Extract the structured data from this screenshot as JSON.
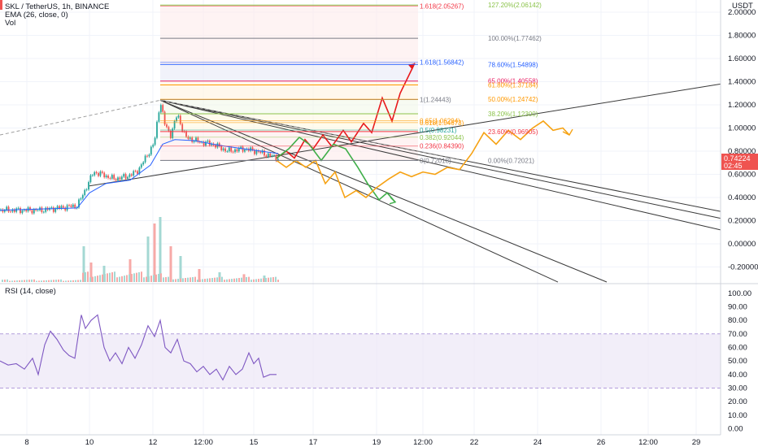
{
  "legend": {
    "symbol": "SKL / TetherUS, 1h, BINANCE",
    "ema": "EMA (26, close, 0)",
    "vol": "Vol",
    "rsi": "RSI (14, close)"
  },
  "price_tag": {
    "value": "0.74224",
    "countdown": "02:45",
    "currency": "USDT"
  },
  "colors": {
    "up": "#26a69a",
    "down": "#ef5350",
    "ema": "#2962ff",
    "rsi": "#7e57c2",
    "rsi_band": "#ede7f6",
    "path_red": "#e8191c",
    "path_green": "#3fae49",
    "path_orange": "#f6a213",
    "trendline": "#3a3a3a"
  },
  "chart_data": [
    {
      "type": "candlestick",
      "title": "SKL / TetherUS, 1h, BINANCE",
      "ylim": [
        -0.28,
        2.08
      ],
      "y_ticks": [
        -0.2,
        0.0,
        0.2,
        0.4,
        0.6,
        0.8,
        1.0,
        1.2,
        1.4,
        1.6,
        1.8,
        2.0
      ],
      "y_tick_labels": [
        "-0.20000",
        "0.00000",
        "0.20000",
        "0.40000",
        "0.60000",
        "0.80000",
        "1.00000",
        "1.20000",
        "1.40000",
        "1.60000",
        "1.80000",
        "2.00000"
      ],
      "x_tick_labels": [
        "8",
        "10",
        "12",
        "12:00",
        "15",
        "17",
        "19",
        "12:00",
        "22",
        "24",
        "26",
        "12:00",
        "29"
      ],
      "last_price": 0.74224,
      "price_anchors": [
        {
          "x": 0,
          "y": 0.29
        },
        {
          "x": 50,
          "y": 0.29
        },
        {
          "x": 95,
          "y": 0.33
        },
        {
          "x": 103,
          "y": 0.44
        },
        {
          "x": 115,
          "y": 0.62
        },
        {
          "x": 125,
          "y": 0.6
        },
        {
          "x": 140,
          "y": 0.56
        },
        {
          "x": 155,
          "y": 0.58
        },
        {
          "x": 168,
          "y": 0.62
        },
        {
          "x": 180,
          "y": 0.75
        },
        {
          "x": 190,
          "y": 0.88
        },
        {
          "x": 197,
          "y": 1.24
        },
        {
          "x": 203,
          "y": 1.02
        },
        {
          "x": 210,
          "y": 0.94
        },
        {
          "x": 218,
          "y": 1.12
        },
        {
          "x": 228,
          "y": 0.92
        },
        {
          "x": 245,
          "y": 0.88
        },
        {
          "x": 262,
          "y": 0.86
        },
        {
          "x": 280,
          "y": 0.8
        },
        {
          "x": 300,
          "y": 0.82
        },
        {
          "x": 315,
          "y": 0.8
        },
        {
          "x": 332,
          "y": 0.76
        },
        {
          "x": 342,
          "y": 0.74
        }
      ],
      "ema": [
        {
          "x": 0,
          "y": 0.29
        },
        {
          "x": 95,
          "y": 0.31
        },
        {
          "x": 110,
          "y": 0.44
        },
        {
          "x": 130,
          "y": 0.52
        },
        {
          "x": 160,
          "y": 0.55
        },
        {
          "x": 185,
          "y": 0.68
        },
        {
          "x": 200,
          "y": 0.86
        },
        {
          "x": 215,
          "y": 0.9
        },
        {
          "x": 240,
          "y": 0.89
        },
        {
          "x": 270,
          "y": 0.85
        },
        {
          "x": 300,
          "y": 0.82
        },
        {
          "x": 342,
          "y": 0.78
        }
      ],
      "fibonacci": [
        {
          "label": "127.20%(2.06142)",
          "value": 2.06142,
          "color": "#8bc34a"
        },
        {
          "label": "100.00%(1.77462)",
          "value": 1.77462,
          "color": "#787b86"
        },
        {
          "label": "78.60%(1.54898)",
          "value": 1.54898,
          "color": "#2962ff"
        },
        {
          "label": "65.00%(1.40558)",
          "value": 1.40558,
          "color": "#e91e63"
        },
        {
          "label": "61.80%(1.37184)",
          "value": 1.37184,
          "color": "#ff9800"
        },
        {
          "label": "50.00%(1.24742)",
          "value": 1.24742,
          "color": "#ff9800"
        },
        {
          "label": "38.20%(1.12300)",
          "value": 1.123,
          "color": "#8bc34a"
        },
        {
          "label": "23.60%(0.96905)",
          "value": 0.96905,
          "color": "#f23645"
        },
        {
          "label": "0.00%(0.72021)",
          "value": 0.72021,
          "color": "#787b86"
        }
      ],
      "fib_retracement": [
        {
          "label": "1.618(2.05267)",
          "value": 2.05267,
          "color": "#f23645"
        },
        {
          "label": "1.618(1.56842)",
          "value": 1.56842,
          "color": "#2962ff"
        },
        {
          "label": "1(1.24443)",
          "value": 1.24443,
          "color": "#787b86"
        },
        {
          "label": "0.65(1.06294)",
          "value": 1.06294,
          "color": "#ff9800"
        },
        {
          "label": "0.618(1.04673)",
          "value": 1.04673,
          "color": "#ff9800"
        },
        {
          "label": "0.5(0.98231)",
          "value": 0.98231,
          "color": "#26a69a"
        },
        {
          "label": "0.382(0.92044)",
          "value": 0.92044,
          "color": "#8bc34a"
        },
        {
          "label": "0.236(0.84390)",
          "value": 0.8439,
          "color": "#f23645"
        },
        {
          "label": "0(0.72018)",
          "value": 0.72018,
          "color": "#787b86"
        }
      ],
      "projection_paths": [
        {
          "color": "#e8191c",
          "points": [
            {
              "x": 340,
              "y": 0.74
            },
            {
              "x": 352,
              "y": 0.8
            },
            {
              "x": 362,
              "y": 0.74
            },
            {
              "x": 375,
              "y": 0.9
            },
            {
              "x": 385,
              "y": 0.82
            },
            {
              "x": 397,
              "y": 0.94
            },
            {
              "x": 408,
              "y": 0.84
            },
            {
              "x": 422,
              "y": 0.98
            },
            {
              "x": 432,
              "y": 0.88
            },
            {
              "x": 447,
              "y": 1.04
            },
            {
              "x": 457,
              "y": 0.96
            },
            {
              "x": 470,
              "y": 1.26
            },
            {
              "x": 482,
              "y": 1.06
            },
            {
              "x": 492,
              "y": 1.3
            },
            {
              "x": 510,
              "y": 1.56
            }
          ]
        },
        {
          "color": "#3fae49",
          "points": [
            {
              "x": 340,
              "y": 0.74
            },
            {
              "x": 355,
              "y": 0.82
            },
            {
              "x": 368,
              "y": 0.92
            },
            {
              "x": 380,
              "y": 0.86
            },
            {
              "x": 395,
              "y": 0.72
            },
            {
              "x": 410,
              "y": 0.86
            },
            {
              "x": 425,
              "y": 0.82
            },
            {
              "x": 440,
              "y": 0.66
            },
            {
              "x": 452,
              "y": 0.52
            },
            {
              "x": 466,
              "y": 0.38
            },
            {
              "x": 476,
              "y": 0.44
            },
            {
              "x": 486,
              "y": 0.36
            }
          ]
        },
        {
          "color": "#f6a213",
          "points": [
            {
              "x": 340,
              "y": 0.72
            },
            {
              "x": 352,
              "y": 0.66
            },
            {
              "x": 364,
              "y": 0.72
            },
            {
              "x": 376,
              "y": 0.66
            },
            {
              "x": 388,
              "y": 0.72
            },
            {
              "x": 400,
              "y": 0.52
            },
            {
              "x": 412,
              "y": 0.62
            },
            {
              "x": 424,
              "y": 0.4
            },
            {
              "x": 438,
              "y": 0.46
            },
            {
              "x": 450,
              "y": 0.4
            },
            {
              "x": 462,
              "y": 0.48
            },
            {
              "x": 478,
              "y": 0.56
            },
            {
              "x": 492,
              "y": 0.62
            },
            {
              "x": 506,
              "y": 0.58
            },
            {
              "x": 520,
              "y": 0.62
            },
            {
              "x": 535,
              "y": 0.6
            },
            {
              "x": 550,
              "y": 0.66
            },
            {
              "x": 565,
              "y": 0.64
            },
            {
              "x": 580,
              "y": 0.78
            },
            {
              "x": 595,
              "y": 0.96
            },
            {
              "x": 610,
              "y": 0.86
            },
            {
              "x": 625,
              "y": 0.98
            },
            {
              "x": 640,
              "y": 0.9
            },
            {
              "x": 655,
              "y": 1.0
            },
            {
              "x": 668,
              "y": 1.06
            },
            {
              "x": 680,
              "y": 0.98
            },
            {
              "x": 692,
              "y": 1.0
            },
            {
              "x": 700,
              "y": 0.94
            }
          ]
        }
      ],
      "trendlines": [
        {
          "style": "solid",
          "from": {
            "x": 110,
            "y": 0.5
          },
          "to": {
            "x": 886,
            "y": 1.38
          }
        },
        {
          "style": "solid",
          "from": {
            "x": 197,
            "y": 1.24
          },
          "to": {
            "x": 886,
            "y": 0.28
          }
        },
        {
          "style": "solid",
          "from": {
            "x": 197,
            "y": 1.24
          },
          "to": {
            "x": 886,
            "y": 0.22
          }
        },
        {
          "style": "solid",
          "from": {
            "x": 197,
            "y": 1.24
          },
          "to": {
            "x": 886,
            "y": 0.12
          }
        },
        {
          "style": "solid",
          "from": {
            "x": 197,
            "y": 1.24
          },
          "to": {
            "x": 686,
            "y": -0.33
          }
        },
        {
          "style": "solid",
          "from": {
            "x": 197,
            "y": 1.24
          },
          "to": {
            "x": 746,
            "y": -0.33
          }
        },
        {
          "style": "dashed",
          "from": {
            "x": 0,
            "y": 0.94
          },
          "to": {
            "x": 197,
            "y": 1.24
          }
        },
        {
          "style": "dashed",
          "from": {
            "x": 197,
            "y": 1.24
          },
          "to": {
            "x": 572,
            "y": 0.72
          }
        }
      ]
    },
    {
      "type": "bar",
      "title": "Vol",
      "note": "volume histogram, relative heights",
      "values_relative": [
        {
          "x": 103,
          "v": 0.55
        },
        {
          "x": 112,
          "v": 0.3
        },
        {
          "x": 128,
          "v": 0.25
        },
        {
          "x": 160,
          "v": 0.35
        },
        {
          "x": 182,
          "v": 0.7
        },
        {
          "x": 190,
          "v": 0.9
        },
        {
          "x": 197,
          "v": 1.0
        },
        {
          "x": 210,
          "v": 0.55
        },
        {
          "x": 222,
          "v": 0.4
        },
        {
          "x": 245,
          "v": 0.2
        },
        {
          "x": 270,
          "v": 0.15
        },
        {
          "x": 300,
          "v": 0.12
        },
        {
          "x": 325,
          "v": 0.1
        }
      ]
    },
    {
      "type": "line",
      "title": "RSI (14, close)",
      "ylim": [
        -6,
        107
      ],
      "y_ticks": [
        0,
        10,
        20,
        30,
        40,
        50,
        60,
        70,
        80,
        90,
        100
      ],
      "y_tick_labels": [
        "0.00",
        "10.00",
        "20.00",
        "30.00",
        "40.00",
        "50.00",
        "60.00",
        "70.00",
        "80.00",
        "90.00",
        "100.00"
      ],
      "band": [
        30,
        70
      ],
      "points": [
        {
          "x": 0,
          "y": 50
        },
        {
          "x": 10,
          "y": 47
        },
        {
          "x": 20,
          "y": 48
        },
        {
          "x": 30,
          "y": 44
        },
        {
          "x": 40,
          "y": 52
        },
        {
          "x": 47,
          "y": 40
        },
        {
          "x": 55,
          "y": 62
        },
        {
          "x": 62,
          "y": 72
        },
        {
          "x": 70,
          "y": 66
        },
        {
          "x": 78,
          "y": 58
        },
        {
          "x": 85,
          "y": 54
        },
        {
          "x": 92,
          "y": 52
        },
        {
          "x": 100,
          "y": 84
        },
        {
          "x": 105,
          "y": 74
        },
        {
          "x": 112,
          "y": 80
        },
        {
          "x": 120,
          "y": 84
        },
        {
          "x": 128,
          "y": 60
        },
        {
          "x": 135,
          "y": 50
        },
        {
          "x": 142,
          "y": 56
        },
        {
          "x": 150,
          "y": 48
        },
        {
          "x": 158,
          "y": 60
        },
        {
          "x": 166,
          "y": 52
        },
        {
          "x": 174,
          "y": 62
        },
        {
          "x": 182,
          "y": 76
        },
        {
          "x": 190,
          "y": 68
        },
        {
          "x": 197,
          "y": 80
        },
        {
          "x": 203,
          "y": 60
        },
        {
          "x": 210,
          "y": 56
        },
        {
          "x": 218,
          "y": 66
        },
        {
          "x": 226,
          "y": 50
        },
        {
          "x": 234,
          "y": 48
        },
        {
          "x": 242,
          "y": 42
        },
        {
          "x": 250,
          "y": 46
        },
        {
          "x": 258,
          "y": 40
        },
        {
          "x": 266,
          "y": 44
        },
        {
          "x": 274,
          "y": 36
        },
        {
          "x": 282,
          "y": 46
        },
        {
          "x": 290,
          "y": 40
        },
        {
          "x": 298,
          "y": 44
        },
        {
          "x": 306,
          "y": 56
        },
        {
          "x": 312,
          "y": 48
        },
        {
          "x": 318,
          "y": 52
        },
        {
          "x": 324,
          "y": 38
        },
        {
          "x": 332,
          "y": 40
        },
        {
          "x": 340,
          "y": 40
        }
      ]
    }
  ]
}
